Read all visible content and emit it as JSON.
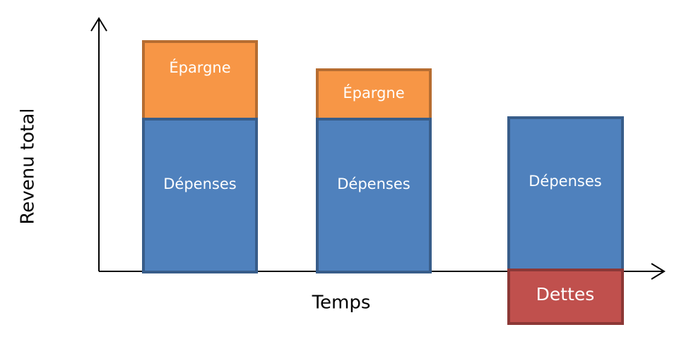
{
  "axes": {
    "x_label": "Temps",
    "y_label": "Revenu total"
  },
  "colors": {
    "expenses_fill": "#4F81BD",
    "expenses_stroke": "#385D8A",
    "savings_fill": "#F79646",
    "savings_stroke": "#B66D31",
    "debt_fill": "#C0504D",
    "debt_stroke": "#8C3836"
  },
  "bars": [
    {
      "expenses_label": "Dépenses",
      "savings_label": "Épargne"
    },
    {
      "expenses_label": "Dépenses",
      "savings_label": "Épargne"
    },
    {
      "expenses_label": "Dépenses",
      "debt_label": "Dettes"
    }
  ]
}
